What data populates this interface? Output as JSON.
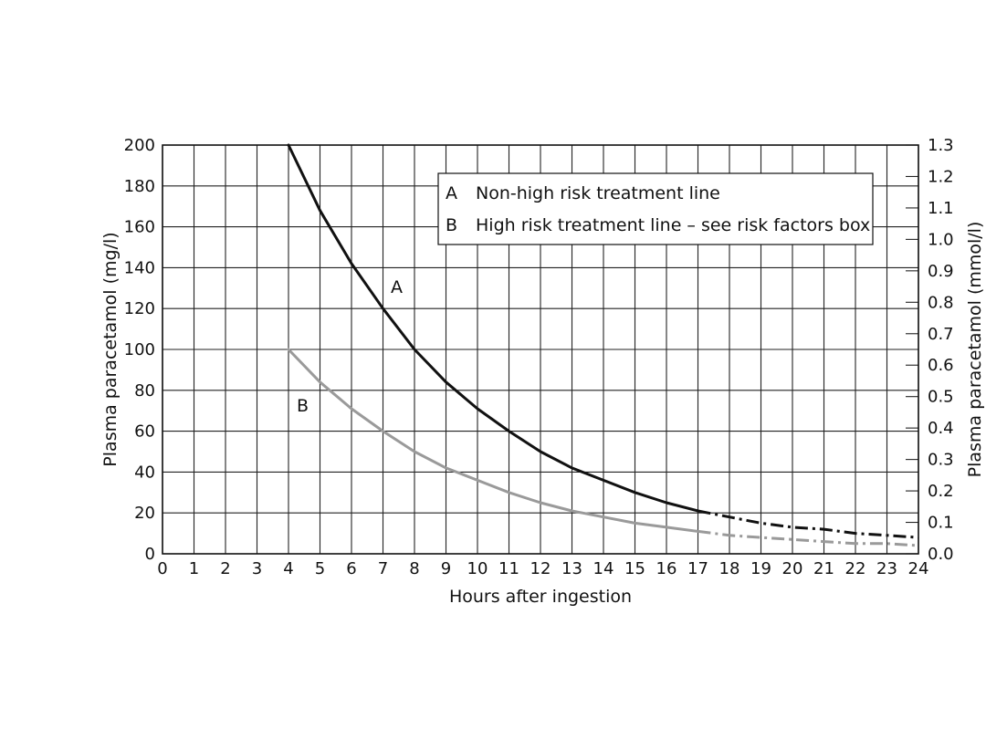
{
  "chart_data": {
    "type": "line",
    "xlabel": "Hours after ingestion",
    "ylabel": "Plasma paracetamol (mg/l)",
    "y2label": "Plasma paracetamol (mmol/l)",
    "xlim": [
      0,
      24
    ],
    "ylim": [
      0,
      200
    ],
    "y2lim": [
      0.0,
      1.3
    ],
    "grid": true,
    "x_ticks": [
      "0",
      "1",
      "2",
      "3",
      "4",
      "5",
      "6",
      "7",
      "8",
      "9",
      "10",
      "11",
      "12",
      "13",
      "14",
      "15",
      "16",
      "17",
      "18",
      "19",
      "20",
      "21",
      "22",
      "23",
      "24"
    ],
    "y_ticks": [
      "0",
      "20",
      "40",
      "60",
      "80",
      "100",
      "120",
      "140",
      "160",
      "180",
      "200"
    ],
    "y2_ticks": [
      "0.0",
      "0.1",
      "0.2",
      "0.3",
      "0.4",
      "0.5",
      "0.6",
      "0.7",
      "0.8",
      "0.9",
      "1.0",
      "1.1",
      "1.2",
      "1.3"
    ],
    "legend": {
      "placement": "top-right",
      "entries": [
        {
          "key": "A",
          "text": "Non-high risk treatment line"
        },
        {
          "key": "B",
          "text": "High risk treatment line – see risk factors box"
        }
      ]
    },
    "series": [
      {
        "name": "A",
        "color": "#111111",
        "solid_until_x": 17,
        "style_after": "dash-dot",
        "x": [
          4,
          5,
          6,
          7,
          8,
          9,
          10,
          11,
          12,
          13,
          14,
          15,
          16,
          17,
          18,
          19,
          20,
          21,
          22,
          23,
          24
        ],
        "values": [
          200,
          168,
          142,
          120,
          100,
          84,
          71,
          60,
          50,
          42,
          36,
          30,
          25,
          21,
          18,
          15,
          13,
          12,
          10,
          9,
          8
        ]
      },
      {
        "name": "B",
        "color": "#9a9a9a",
        "solid_until_x": 17,
        "style_after": "dash-dot",
        "x": [
          4,
          5,
          6,
          7,
          8,
          9,
          10,
          11,
          12,
          13,
          14,
          15,
          16,
          17,
          18,
          19,
          20,
          21,
          22,
          23,
          24
        ],
        "values": [
          100,
          84,
          71,
          60,
          50,
          42,
          36,
          30,
          25,
          21,
          18,
          15,
          13,
          11,
          9,
          8,
          7,
          6,
          5,
          5,
          4
        ]
      }
    ]
  }
}
